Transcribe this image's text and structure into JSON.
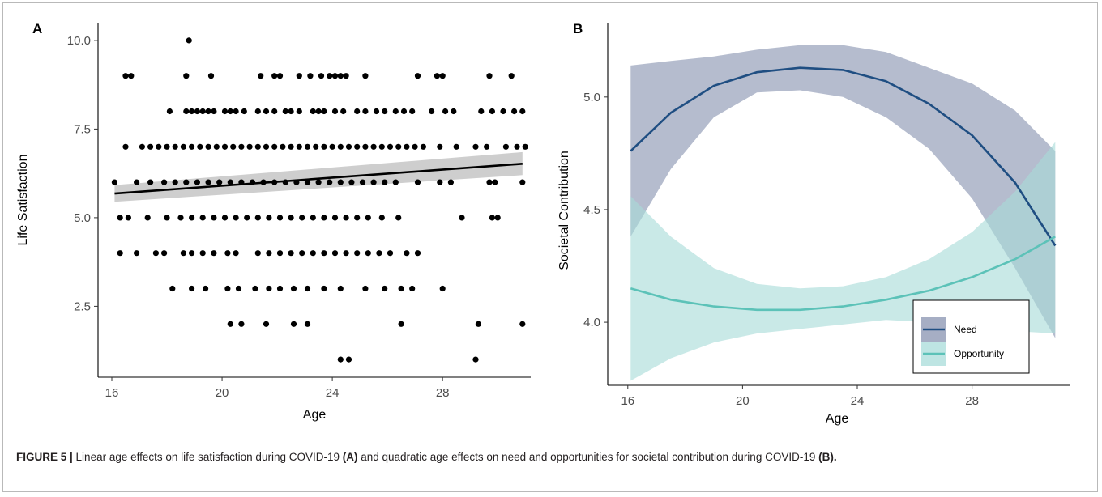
{
  "chart_data": [
    {
      "panel": "A",
      "type": "scatter",
      "title": "",
      "xlabel": "Age",
      "ylabel": "Life Satisfaction",
      "xlim": [
        15.5,
        31.2
      ],
      "ylim": [
        0.5,
        10.5
      ],
      "xticks": [
        16,
        20,
        24,
        28
      ],
      "yticks": [
        2.5,
        5.0,
        7.5,
        10.0
      ],
      "xtick_labels": [
        "16",
        "20",
        "24",
        "28"
      ],
      "ytick_labels": [
        "2.5",
        "5.0",
        "7.5",
        "10.0"
      ],
      "grid": false,
      "fit_line": {
        "type": "linear",
        "x": [
          16.1,
          30.9
        ],
        "y": [
          5.68,
          6.52
        ],
        "ci_low": [
          5.45,
          6.2
        ],
        "ci_high": [
          5.92,
          6.85
        ]
      },
      "points": [
        [
          18.8,
          10
        ],
        [
          16.5,
          9
        ],
        [
          16.7,
          9
        ],
        [
          18.7,
          9
        ],
        [
          19.6,
          9
        ],
        [
          21.4,
          9
        ],
        [
          21.9,
          9
        ],
        [
          22.1,
          9
        ],
        [
          22.8,
          9
        ],
        [
          23.2,
          9
        ],
        [
          23.6,
          9
        ],
        [
          23.9,
          9
        ],
        [
          24.1,
          9
        ],
        [
          24.3,
          9
        ],
        [
          24.5,
          9
        ],
        [
          25.2,
          9
        ],
        [
          27.1,
          9
        ],
        [
          27.8,
          9
        ],
        [
          28.0,
          9
        ],
        [
          29.7,
          9
        ],
        [
          30.5,
          9
        ],
        [
          18.1,
          8
        ],
        [
          18.7,
          8
        ],
        [
          18.9,
          8
        ],
        [
          19.1,
          8
        ],
        [
          19.3,
          8
        ],
        [
          19.5,
          8
        ],
        [
          19.7,
          8
        ],
        [
          20.1,
          8
        ],
        [
          20.3,
          8
        ],
        [
          20.5,
          8
        ],
        [
          20.8,
          8
        ],
        [
          21.3,
          8
        ],
        [
          21.6,
          8
        ],
        [
          21.9,
          8
        ],
        [
          22.3,
          8
        ],
        [
          22.5,
          8
        ],
        [
          22.8,
          8
        ],
        [
          23.3,
          8
        ],
        [
          23.5,
          8
        ],
        [
          23.7,
          8
        ],
        [
          24.1,
          8
        ],
        [
          24.4,
          8
        ],
        [
          24.9,
          8
        ],
        [
          25.2,
          8
        ],
        [
          25.6,
          8
        ],
        [
          25.9,
          8
        ],
        [
          26.3,
          8
        ],
        [
          26.6,
          8
        ],
        [
          26.9,
          8
        ],
        [
          27.6,
          8
        ],
        [
          28.1,
          8
        ],
        [
          28.4,
          8
        ],
        [
          29.4,
          8
        ],
        [
          29.8,
          8
        ],
        [
          30.2,
          8
        ],
        [
          30.6,
          8
        ],
        [
          30.9,
          8
        ],
        [
          16.5,
          7
        ],
        [
          17.1,
          7
        ],
        [
          17.4,
          7
        ],
        [
          17.7,
          7
        ],
        [
          18.0,
          7
        ],
        [
          18.3,
          7
        ],
        [
          18.6,
          7
        ],
        [
          18.9,
          7
        ],
        [
          19.2,
          7
        ],
        [
          19.5,
          7
        ],
        [
          19.8,
          7
        ],
        [
          20.1,
          7
        ],
        [
          20.4,
          7
        ],
        [
          20.7,
          7
        ],
        [
          21.0,
          7
        ],
        [
          21.3,
          7
        ],
        [
          21.6,
          7
        ],
        [
          21.9,
          7
        ],
        [
          22.2,
          7
        ],
        [
          22.5,
          7
        ],
        [
          22.8,
          7
        ],
        [
          23.1,
          7
        ],
        [
          23.4,
          7
        ],
        [
          23.7,
          7
        ],
        [
          24.0,
          7
        ],
        [
          24.3,
          7
        ],
        [
          24.6,
          7
        ],
        [
          24.9,
          7
        ],
        [
          25.2,
          7
        ],
        [
          25.5,
          7
        ],
        [
          25.8,
          7
        ],
        [
          26.1,
          7
        ],
        [
          26.4,
          7
        ],
        [
          26.7,
          7
        ],
        [
          27.0,
          7
        ],
        [
          27.3,
          7
        ],
        [
          27.9,
          7
        ],
        [
          28.5,
          7
        ],
        [
          29.2,
          7
        ],
        [
          29.6,
          7
        ],
        [
          30.3,
          7
        ],
        [
          30.7,
          7
        ],
        [
          31.0,
          7
        ],
        [
          16.1,
          6
        ],
        [
          16.9,
          6
        ],
        [
          17.4,
          6
        ],
        [
          17.9,
          6
        ],
        [
          18.3,
          6
        ],
        [
          18.7,
          6
        ],
        [
          19.1,
          6
        ],
        [
          19.5,
          6
        ],
        [
          19.9,
          6
        ],
        [
          20.3,
          6
        ],
        [
          20.7,
          6
        ],
        [
          21.1,
          6
        ],
        [
          21.5,
          6
        ],
        [
          21.9,
          6
        ],
        [
          22.3,
          6
        ],
        [
          22.7,
          6
        ],
        [
          23.1,
          6
        ],
        [
          23.5,
          6
        ],
        [
          23.9,
          6
        ],
        [
          24.3,
          6
        ],
        [
          24.7,
          6
        ],
        [
          25.1,
          6
        ],
        [
          25.5,
          6
        ],
        [
          25.9,
          6
        ],
        [
          26.3,
          6
        ],
        [
          27.1,
          6
        ],
        [
          27.9,
          6
        ],
        [
          28.3,
          6
        ],
        [
          29.7,
          6
        ],
        [
          29.9,
          6
        ],
        [
          30.9,
          6
        ],
        [
          16.3,
          5
        ],
        [
          16.6,
          5
        ],
        [
          17.3,
          5
        ],
        [
          18.0,
          5
        ],
        [
          18.5,
          5
        ],
        [
          18.9,
          5
        ],
        [
          19.3,
          5
        ],
        [
          19.7,
          5
        ],
        [
          20.1,
          5
        ],
        [
          20.5,
          5
        ],
        [
          20.9,
          5
        ],
        [
          21.3,
          5
        ],
        [
          21.7,
          5
        ],
        [
          22.1,
          5
        ],
        [
          22.5,
          5
        ],
        [
          22.9,
          5
        ],
        [
          23.3,
          5
        ],
        [
          23.7,
          5
        ],
        [
          24.1,
          5
        ],
        [
          24.5,
          5
        ],
        [
          24.9,
          5
        ],
        [
          25.3,
          5
        ],
        [
          25.8,
          5
        ],
        [
          26.4,
          5
        ],
        [
          28.7,
          5
        ],
        [
          29.8,
          5
        ],
        [
          30.0,
          5
        ],
        [
          16.3,
          4
        ],
        [
          16.9,
          4
        ],
        [
          17.6,
          4
        ],
        [
          17.9,
          4
        ],
        [
          18.6,
          4
        ],
        [
          18.9,
          4
        ],
        [
          19.3,
          4
        ],
        [
          19.7,
          4
        ],
        [
          20.2,
          4
        ],
        [
          20.5,
          4
        ],
        [
          21.3,
          4
        ],
        [
          21.7,
          4
        ],
        [
          22.1,
          4
        ],
        [
          22.5,
          4
        ],
        [
          22.9,
          4
        ],
        [
          23.3,
          4
        ],
        [
          23.7,
          4
        ],
        [
          24.1,
          4
        ],
        [
          24.5,
          4
        ],
        [
          24.9,
          4
        ],
        [
          25.3,
          4
        ],
        [
          25.7,
          4
        ],
        [
          26.1,
          4
        ],
        [
          26.7,
          4
        ],
        [
          27.1,
          4
        ],
        [
          18.2,
          3
        ],
        [
          18.9,
          3
        ],
        [
          19.4,
          3
        ],
        [
          20.2,
          3
        ],
        [
          20.6,
          3
        ],
        [
          21.2,
          3
        ],
        [
          21.7,
          3
        ],
        [
          22.1,
          3
        ],
        [
          22.6,
          3
        ],
        [
          23.1,
          3
        ],
        [
          23.7,
          3
        ],
        [
          24.3,
          3
        ],
        [
          25.2,
          3
        ],
        [
          25.9,
          3
        ],
        [
          26.5,
          3
        ],
        [
          26.9,
          3
        ],
        [
          28.0,
          3
        ],
        [
          20.3,
          2
        ],
        [
          20.7,
          2
        ],
        [
          21.6,
          2
        ],
        [
          22.6,
          2
        ],
        [
          23.1,
          2
        ],
        [
          26.5,
          2
        ],
        [
          29.3,
          2
        ],
        [
          30.9,
          2
        ],
        [
          24.3,
          1
        ],
        [
          24.6,
          1
        ],
        [
          29.2,
          1
        ]
      ]
    },
    {
      "panel": "B",
      "type": "line",
      "title": "",
      "xlabel": "Age",
      "ylabel": "Societal Contribution",
      "xlim": [
        15.3,
        31.4
      ],
      "ylim": [
        3.72,
        5.33
      ],
      "xticks": [
        16,
        20,
        24,
        28
      ],
      "yticks": [
        4.0,
        4.5,
        5.0
      ],
      "xtick_labels": [
        "16",
        "20",
        "24",
        "28"
      ],
      "ytick_labels": [
        "4.0",
        "4.5",
        "5.0"
      ],
      "grid": false,
      "legend_position": "bottom-right",
      "series": [
        {
          "name": "Need",
          "color": "#1f4e82",
          "band_color": "#8893b0",
          "x": [
            16.1,
            17.5,
            19,
            20.5,
            22,
            23.5,
            25,
            26.5,
            28,
            29.5,
            30.9
          ],
          "y": [
            4.76,
            4.93,
            5.05,
            5.11,
            5.13,
            5.12,
            5.07,
            4.97,
            4.83,
            4.62,
            4.34
          ],
          "ci_low": [
            4.38,
            4.68,
            4.91,
            5.02,
            5.03,
            5.0,
            4.91,
            4.77,
            4.55,
            4.24,
            3.93
          ],
          "ci_high": [
            5.14,
            5.16,
            5.18,
            5.21,
            5.23,
            5.23,
            5.2,
            5.13,
            5.06,
            4.94,
            4.76
          ]
        },
        {
          "name": "Opportunity",
          "color": "#5cc2b8",
          "band_color": "#a8dcd9",
          "x": [
            16.1,
            17.5,
            19,
            20.5,
            22,
            23.5,
            25,
            26.5,
            28,
            29.5,
            30.9
          ],
          "y": [
            4.15,
            4.1,
            4.07,
            4.055,
            4.055,
            4.07,
            4.1,
            4.14,
            4.2,
            4.28,
            4.38
          ],
          "ci_low": [
            3.74,
            3.84,
            3.91,
            3.95,
            3.97,
            3.99,
            4.01,
            4.0,
            3.98,
            3.96,
            3.95
          ],
          "ci_high": [
            4.56,
            4.38,
            4.24,
            4.17,
            4.15,
            4.16,
            4.2,
            4.28,
            4.4,
            4.58,
            4.8
          ]
        }
      ]
    }
  ],
  "labels": {
    "panel_a": "A",
    "panel_b": "B"
  },
  "caption": {
    "label": "FIGURE 5 |",
    "text_1": " Linear age effects on life satisfaction during COVID-19 ",
    "bold_a": "(A)",
    "text_2": " and quadratic age effects on need and opportunities for societal contribution during COVID-19 ",
    "bold_b": "(B)."
  },
  "colors": {
    "points": "#000000",
    "fit_line": "#000000",
    "fit_band": "#bdbdbd",
    "frame": "#b9b9b9",
    "caption_text": "#231f20"
  }
}
